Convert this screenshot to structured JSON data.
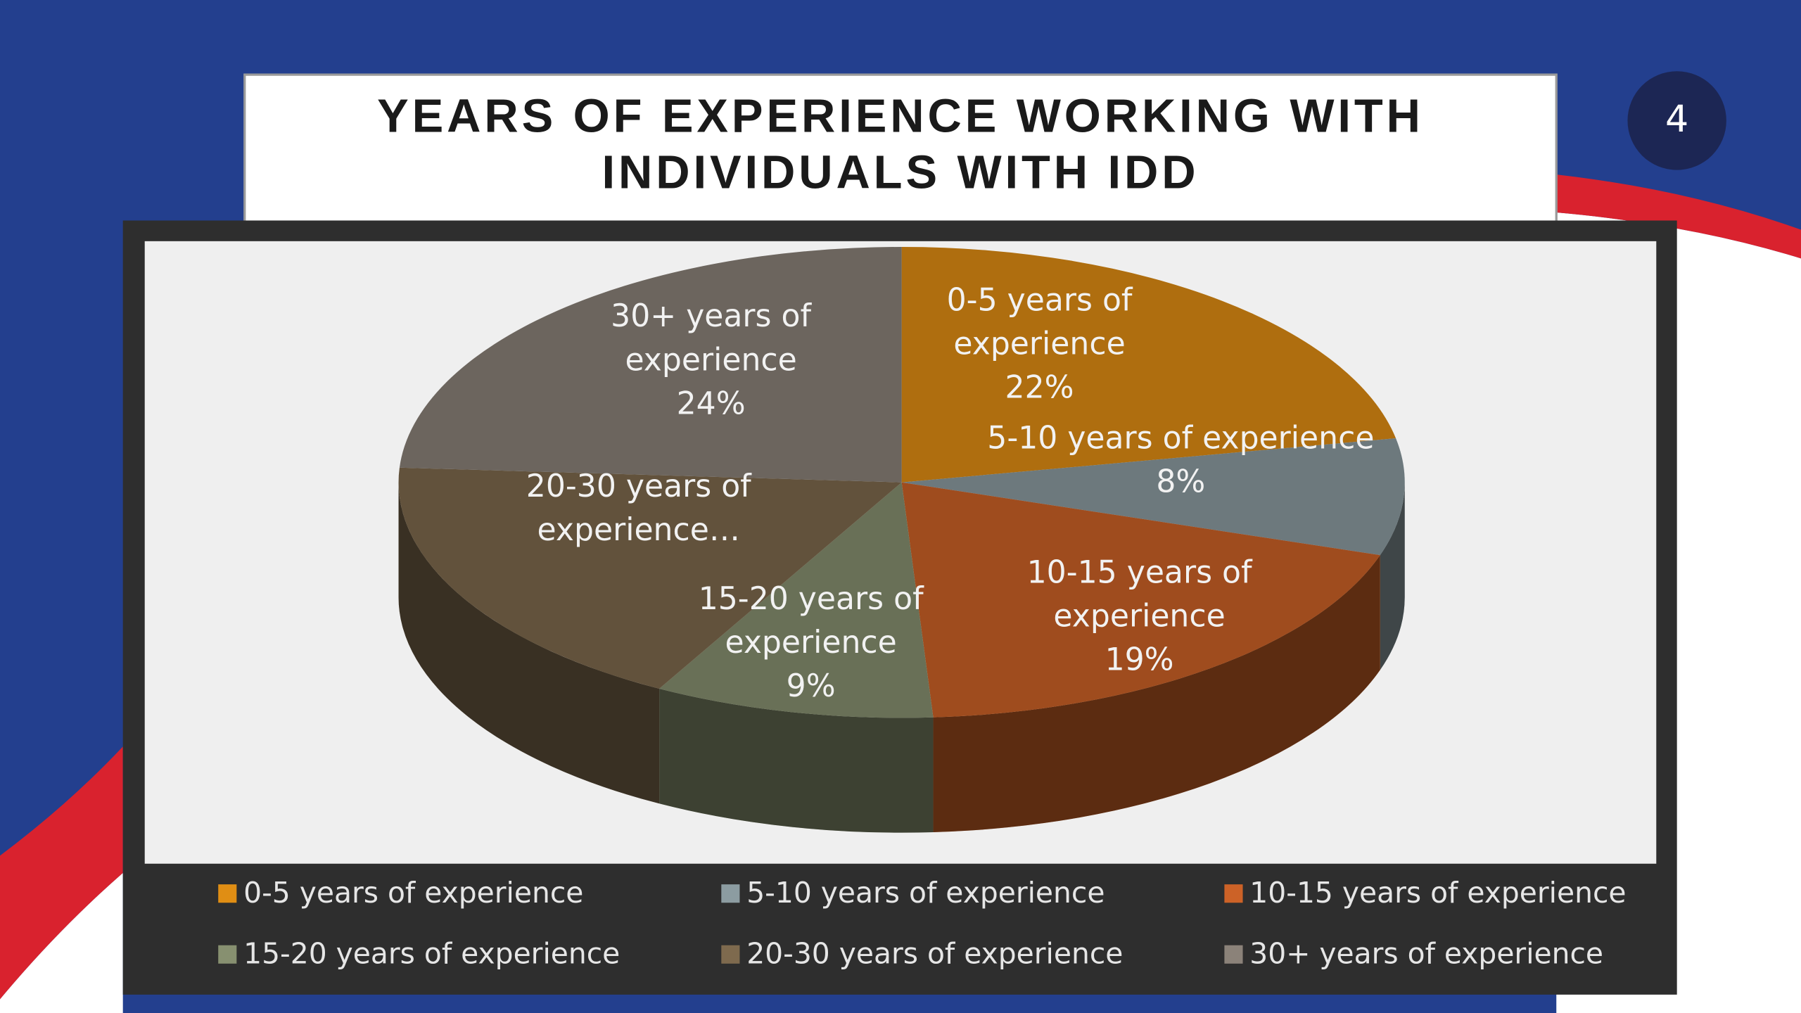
{
  "slide_number": "4",
  "chart_data": {
    "type": "pie",
    "title": [
      "YEARS OF EXPERIENCE WORKING WITH",
      "INDIVIDUALS WITH IDD"
    ],
    "categories": [
      "0-5 years of experience",
      "5-10 years of experience",
      "10-15 years of experience",
      "15-20 years of experience",
      "20-30 years of experience",
      "30+ years of experience"
    ],
    "values": [
      22,
      8,
      19,
      9,
      18,
      24
    ],
    "value_labels": [
      "22%",
      "8%",
      "19%",
      "9%",
      null,
      "24%"
    ],
    "slice_labels": [
      [
        "0-5 years of",
        "experience"
      ],
      [
        "5-10 years of experience"
      ],
      [
        "10-15 years of",
        "experience"
      ],
      [
        "15-20 years of",
        "experience"
      ],
      [
        "20-30 years of",
        "experience…"
      ],
      [
        "30+ years of",
        "experience"
      ]
    ],
    "colors": [
      "#e08e14",
      "#8c9ca1",
      "#cc6227",
      "#879070",
      "#7e6a4e",
      "#8b8279"
    ],
    "legend": "bottom"
  }
}
